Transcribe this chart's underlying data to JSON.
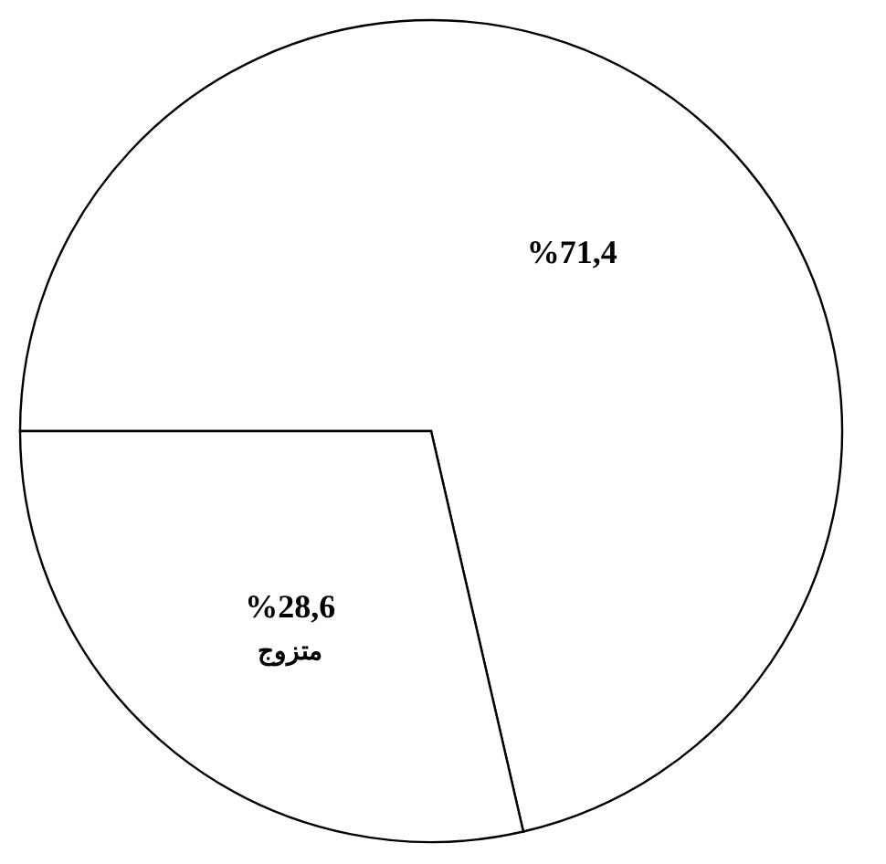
{
  "chart_data": {
    "type": "pie",
    "categories": [
      null,
      "متزوج"
    ],
    "values": [
      71.4,
      28.6
    ],
    "value_labels": [
      "%71,4",
      "%28,6"
    ],
    "colors": [
      "#ffffff",
      "#ffffff"
    ],
    "legend": false
  }
}
